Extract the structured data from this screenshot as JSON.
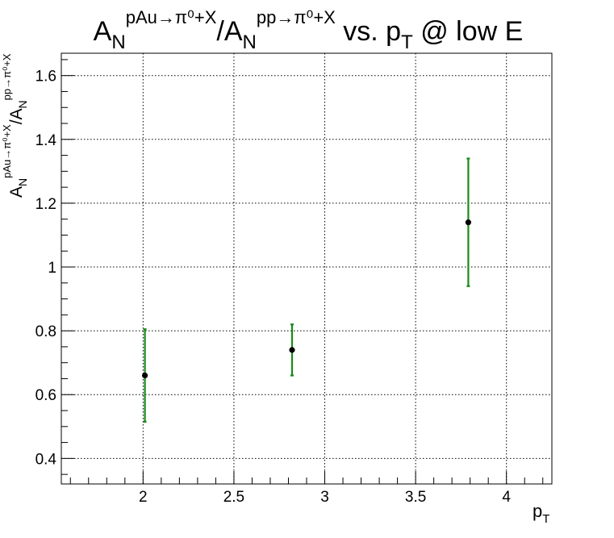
{
  "chart_data": {
    "type": "scatter",
    "title": {
      "base1": "A",
      "sub1": "N",
      "sup1": "pAu→π⁰+X",
      "sep": "/A",
      "sub2": "N",
      "sup2": "pp→π⁰+X",
      "tail1": " vs. p",
      "tail_sub": "T",
      "tail2": " @ low E"
    },
    "ylabel": {
      "base1": "A",
      "sub1": "N",
      "sup1": "pAu→π⁰+X",
      "sep": "/A",
      "sub2": "N",
      "sup2": "pp→π⁰+X"
    },
    "xlabel": {
      "base": "p",
      "sub": "T"
    },
    "xlim": [
      1.55,
      4.25
    ],
    "ylim": [
      0.32,
      1.67
    ],
    "x_ticks": [
      2,
      2.5,
      3,
      3.5,
      4
    ],
    "x_tick_labels": [
      "2",
      "2.5",
      "3",
      "3.5",
      "4"
    ],
    "y_ticks": [
      0.4,
      0.6,
      0.8,
      1.0,
      1.2,
      1.4,
      1.6
    ],
    "y_tick_labels": [
      "0.4",
      "0.6",
      "0.8",
      "1",
      "1.2",
      "1.4",
      "1.6"
    ],
    "grid": true,
    "marker_color": "#000000",
    "error_bar_color": "#1a8a1a",
    "points": [
      {
        "x": 2.01,
        "y": 0.66,
        "err": 0.145
      },
      {
        "x": 2.82,
        "y": 0.74,
        "err": 0.08
      },
      {
        "x": 3.79,
        "y": 1.14,
        "err": 0.2
      }
    ]
  }
}
